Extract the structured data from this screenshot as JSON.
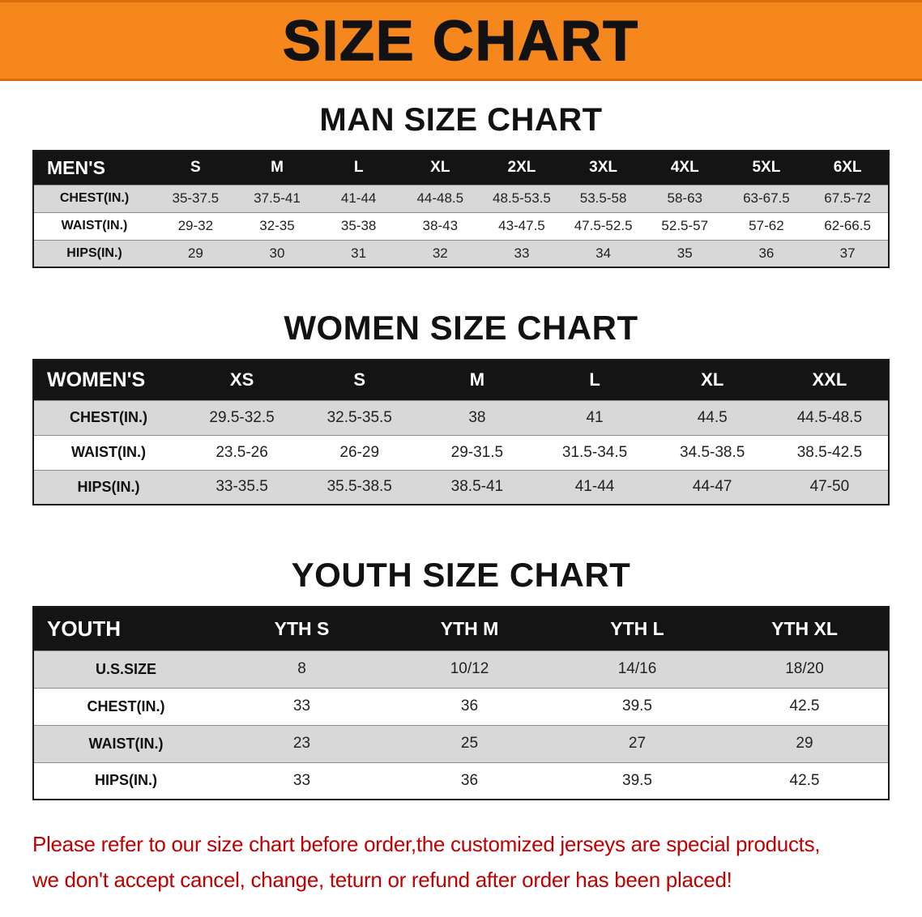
{
  "banner": {
    "title": "SIZE CHART",
    "bg_color": "#f6871c"
  },
  "colors": {
    "banner_bg": "#f6871c",
    "table_header_bg": "#141414",
    "row_alt_gray": "#d8d8d8",
    "disclaimer_red": "#c00000"
  },
  "sections": [
    {
      "id": "men",
      "heading": "MAN SIZE CHART",
      "table": {
        "header": [
          "MEN'S",
          "S",
          "M",
          "L",
          "XL",
          "2XL",
          "3XL",
          "4XL",
          "5XL",
          "6XL"
        ],
        "rows": [
          [
            "CHEST(IN.)",
            "35-37.5",
            "37.5-41",
            "41-44",
            "44-48.5",
            "48.5-53.5",
            "53.5-58",
            "58-63",
            "63-67.5",
            "67.5-72"
          ],
          [
            "WAIST(IN.)",
            "29-32",
            "32-35",
            "35-38",
            "38-43",
            "43-47.5",
            "47.5-52.5",
            "52.5-57",
            "57-62",
            "62-66.5"
          ],
          [
            "HIPS(IN.)",
            "29",
            "30",
            "31",
            "32",
            "33",
            "34",
            "35",
            "36",
            "37"
          ]
        ]
      }
    },
    {
      "id": "women",
      "heading": "WOMEN SIZE CHART",
      "table": {
        "header": [
          "WOMEN'S",
          "XS",
          "S",
          "M",
          "L",
          "XL",
          "XXL"
        ],
        "rows": [
          [
            "CHEST(IN.)",
            "29.5-32.5",
            "32.5-35.5",
            "38",
            "41",
            "44.5",
            "44.5-48.5"
          ],
          [
            "WAIST(IN.)",
            "23.5-26",
            "26-29",
            "29-31.5",
            "31.5-34.5",
            "34.5-38.5",
            "38.5-42.5"
          ],
          [
            "HIPS(IN.)",
            "33-35.5",
            "35.5-38.5",
            "38.5-41",
            "41-44",
            "44-47",
            "47-50"
          ]
        ]
      }
    },
    {
      "id": "youth",
      "heading": "YOUTH SIZE CHART",
      "table": {
        "header": [
          "YOUTH",
          "YTH S",
          "YTH M",
          "YTH L",
          "YTH XL"
        ],
        "rows": [
          [
            "U.S.SIZE",
            "8",
            "10/12",
            "14/16",
            "18/20"
          ],
          [
            "CHEST(IN.)",
            "33",
            "36",
            "39.5",
            "42.5"
          ],
          [
            "WAIST(IN.)",
            "23",
            "25",
            "27",
            "29"
          ],
          [
            "HIPS(IN.)",
            "33",
            "36",
            "39.5",
            "42.5"
          ]
        ]
      }
    }
  ],
  "disclaimer": {
    "lines": [
      "Please refer to our size chart before order,the customized jerseys are special products,",
      "we don't accept cancel, change, teturn or refund after order has been placed!"
    ]
  }
}
